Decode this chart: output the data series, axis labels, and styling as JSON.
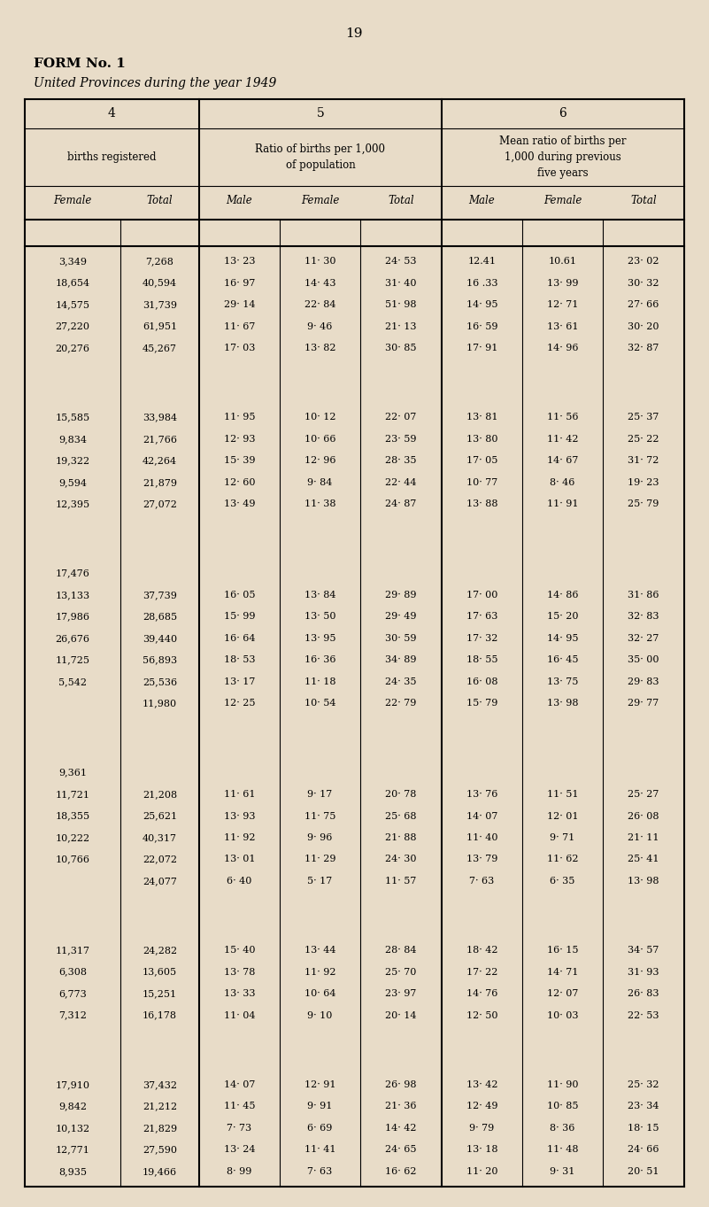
{
  "page_number": "19",
  "form_title": "FORM No. 1",
  "subtitle": "United Provinces during the year 1949",
  "bg_color": "#e8dcc8",
  "groups": [
    {
      "rows": [
        [
          "3,349",
          "7,268",
          "13· 23",
          "11· 30",
          "24· 53",
          "12.41",
          "10.61",
          "23· 02"
        ],
        [
          "18,654",
          "40,594",
          "16· 97",
          "14· 43",
          "31· 40",
          "16 .33",
          "13· 99",
          "30· 32"
        ],
        [
          "14,575",
          "31,739",
          "29· 14",
          "22· 84",
          "51· 98",
          "14· 95",
          "12· 71",
          "27· 66"
        ],
        [
          "27,220",
          "61,951",
          "11· 67",
          "9· 46",
          "21· 13",
          "16· 59",
          "13· 61",
          "30· 20"
        ],
        [
          "20,276",
          "45,267",
          "17· 03",
          "13· 82",
          "30· 85",
          "17· 91",
          "14· 96",
          "32· 87"
        ]
      ]
    },
    {
      "rows": [
        [
          "15,585",
          "33,984",
          "11· 95",
          "10· 12",
          "22· 07",
          "13· 81",
          "11· 56",
          "25· 37"
        ],
        [
          "9,834",
          "21,766",
          "12· 93",
          "10· 66",
          "23· 59",
          "13· 80",
          "11· 42",
          "25· 22"
        ],
        [
          "19,322",
          "42,264",
          "15· 39",
          "12· 96",
          "28· 35",
          "17· 05",
          "14· 67",
          "31· 72"
        ],
        [
          "9,594",
          "21,879",
          "12· 60",
          "9· 84",
          "22· 44",
          "10· 77",
          "8· 46",
          "19· 23"
        ],
        [
          "12,395",
          "27,072",
          "13· 49",
          "11· 38",
          "24· 87",
          "13· 88",
          "11· 91",
          "25· 79"
        ]
      ]
    },
    {
      "rows": [
        [
          "17,476",
          "",
          "",
          "",
          "",
          "",
          "",
          ""
        ],
        [
          "13,133",
          "37,739",
          "16· 05",
          "13· 84",
          "29· 89",
          "17· 00",
          "14· 86",
          "31· 86"
        ],
        [
          "17,986",
          "28,685",
          "15· 99",
          "13· 50",
          "29· 49",
          "17· 63",
          "15· 20",
          "32· 83"
        ],
        [
          "26,676",
          "39,440",
          "16· 64",
          "13· 95",
          "30· 59",
          "17· 32",
          "14· 95",
          "32· 27"
        ],
        [
          "11,725",
          "56,893",
          "18· 53",
          "16· 36",
          "34· 89",
          "18· 55",
          "16· 45",
          "35· 00"
        ],
        [
          "5,542",
          "25,536",
          "13· 17",
          "11· 18",
          "24· 35",
          "16· 08",
          "13· 75",
          "29· 83"
        ],
        [
          "",
          "11,980",
          "12· 25",
          "10· 54",
          "22· 79",
          "15· 79",
          "13· 98",
          "29· 77"
        ]
      ]
    },
    {
      "rows": [
        [
          "9,361",
          "",
          "",
          "",
          "",
          "",
          "",
          ""
        ],
        [
          "11,721",
          "21,208",
          "11· 61",
          "9· 17",
          "20· 78",
          "13· 76",
          "11· 51",
          "25· 27"
        ],
        [
          "18,355",
          "25,621",
          "13· 93",
          "11· 75",
          "25· 68",
          "14· 07",
          "12· 01",
          "26· 08"
        ],
        [
          "10,222",
          "40,317",
          "11· 92",
          "9· 96",
          "21· 88",
          "11· 40",
          "9· 71",
          "21· 11"
        ],
        [
          "10,766",
          "22,072",
          "13· 01",
          "11· 29",
          "24· 30",
          "13· 79",
          "11· 62",
          "25· 41"
        ],
        [
          "",
          "24,077",
          "6· 40",
          "5· 17",
          "11· 57",
          "7· 63",
          "6· 35",
          "13· 98"
        ]
      ]
    },
    {
      "rows": [
        [
          "11,317",
          "24,282",
          "15· 40",
          "13· 44",
          "28· 84",
          "18· 42",
          "16· 15",
          "34· 57"
        ],
        [
          "6,308",
          "13,605",
          "13· 78",
          "11· 92",
          "25· 70",
          "17· 22",
          "14· 71",
          "31· 93"
        ],
        [
          "6,773",
          "15,251",
          "13· 33",
          "10· 64",
          "23· 97",
          "14· 76",
          "12· 07",
          "26· 83"
        ],
        [
          "7,312",
          "16,178",
          "11· 04",
          "9· 10",
          "20· 14",
          "12· 50",
          "10· 03",
          "22· 53"
        ]
      ]
    },
    {
      "rows": [
        [
          "17,910",
          "37,432",
          "14· 07",
          "12· 91",
          "26· 98",
          "13· 42",
          "11· 90",
          "25· 32"
        ],
        [
          "9,842",
          "21,212",
          "11· 45",
          "9· 91",
          "21· 36",
          "12· 49",
          "10· 85",
          "23· 34"
        ],
        [
          "10,132",
          "21,829",
          "7· 73",
          "6· 69",
          "14· 42",
          "9· 79",
          "8· 36",
          "18· 15"
        ],
        [
          "12,771",
          "27,590",
          "13· 24",
          "11· 41",
          "24· 65",
          "13· 18",
          "11· 48",
          "24· 66"
        ],
        [
          "8,935",
          "19,466",
          "8· 99",
          "7· 63",
          "16· 62",
          "11· 20",
          "9· 31",
          "20· 51"
        ]
      ]
    }
  ]
}
